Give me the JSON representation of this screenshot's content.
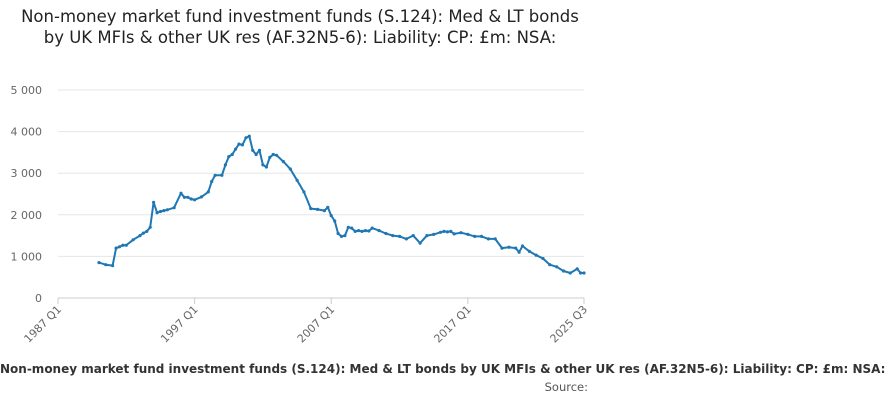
{
  "chart_data": {
    "type": "line",
    "title": "Non-money market fund investment funds (S.124): Med & LT bonds by UK MFIs & other UK res (AF.32N5-6): Liability: CP: £m: NSA:",
    "xlabel": "",
    "ylabel": "",
    "x_tick_labels": [
      "1987 Q1",
      "1997 Q1",
      "2007 Q1",
      "2017 Q1",
      "2025 Q3"
    ],
    "x_tick_years": [
      1987.0,
      1997.0,
      2007.0,
      2017.0,
      2025.5
    ],
    "xlim": [
      1987.0,
      2025.5
    ],
    "ylim": [
      0,
      5000
    ],
    "y_ticks": [
      0,
      1000,
      2000,
      3000,
      4000,
      5000
    ],
    "y_tick_labels": [
      "0",
      "1 000",
      "2 000",
      "3 000",
      "4 000",
      "5 000"
    ],
    "grid": true,
    "line_color": "#1f77b4",
    "series": [
      {
        "x": [
          1990.0,
          1990.5,
          1991.0,
          1991.25,
          1991.5,
          1991.75,
          1992.0,
          1992.5,
          1993.0,
          1993.25,
          1993.5,
          1993.75,
          1994.0,
          1994.25,
          1994.5,
          1994.75,
          1995.0,
          1995.5,
          1996.0,
          1996.25,
          1996.5,
          1996.75,
          1997.0,
          1997.5,
          1998.0,
          1998.25,
          1998.5,
          1999.0,
          1999.25,
          1999.5,
          1999.75,
          2000.0,
          2000.25,
          2000.5,
          2000.75,
          2001.0,
          2001.25,
          2001.5,
          2001.75,
          2002.0,
          2002.25,
          2002.5,
          2002.75,
          2003.0,
          2003.5,
          2004.0,
          2004.5,
          2005.0,
          2005.5,
          2006.0,
          2006.5,
          2006.75,
          2007.0,
          2007.25,
          2007.5,
          2007.75,
          2008.0,
          2008.25,
          2008.5,
          2008.75,
          2009.0,
          2009.25,
          2009.5,
          2009.75,
          2010.0,
          2010.5,
          2011.0,
          2011.5,
          2012.0,
          2012.5,
          2013.0,
          2013.5,
          2014.0,
          2014.5,
          2015.0,
          2015.25,
          2015.5,
          2015.75,
          2016.0,
          2016.5,
          2017.0,
          2017.5,
          2018.0,
          2018.5,
          2019.0,
          2019.5,
          2020.0,
          2020.5,
          2020.75,
          2021.0,
          2021.5,
          2022.0,
          2022.5,
          2023.0,
          2023.5,
          2024.0,
          2024.5,
          2025.0,
          2025.25,
          2025.5
        ],
        "y": [
          850,
          800,
          780,
          1200,
          1230,
          1270,
          1270,
          1400,
          1500,
          1560,
          1600,
          1700,
          2300,
          2050,
          2080,
          2100,
          2120,
          2170,
          2520,
          2420,
          2420,
          2380,
          2360,
          2430,
          2550,
          2800,
          2950,
          2950,
          3200,
          3400,
          3450,
          3580,
          3700,
          3680,
          3850,
          3890,
          3550,
          3450,
          3550,
          3200,
          3150,
          3380,
          3450,
          3430,
          3280,
          3100,
          2830,
          2550,
          2150,
          2130,
          2100,
          2180,
          1980,
          1850,
          1550,
          1480,
          1500,
          1700,
          1680,
          1600,
          1620,
          1600,
          1620,
          1610,
          1680,
          1620,
          1550,
          1500,
          1480,
          1420,
          1500,
          1320,
          1500,
          1530,
          1580,
          1600,
          1590,
          1600,
          1540,
          1570,
          1530,
          1480,
          1480,
          1420,
          1420,
          1200,
          1220,
          1200,
          1100,
          1250,
          1120,
          1030,
          950,
          800,
          750,
          650,
          600,
          700,
          600,
          600
        ]
      }
    ],
    "footer_text": "Non-money market fund investment funds (S.124): Med & LT bonds by UK MFIs & other UK res (AF.32N5-6): Liability: CP: £m: NSA:",
    "source_label": "Source:"
  }
}
